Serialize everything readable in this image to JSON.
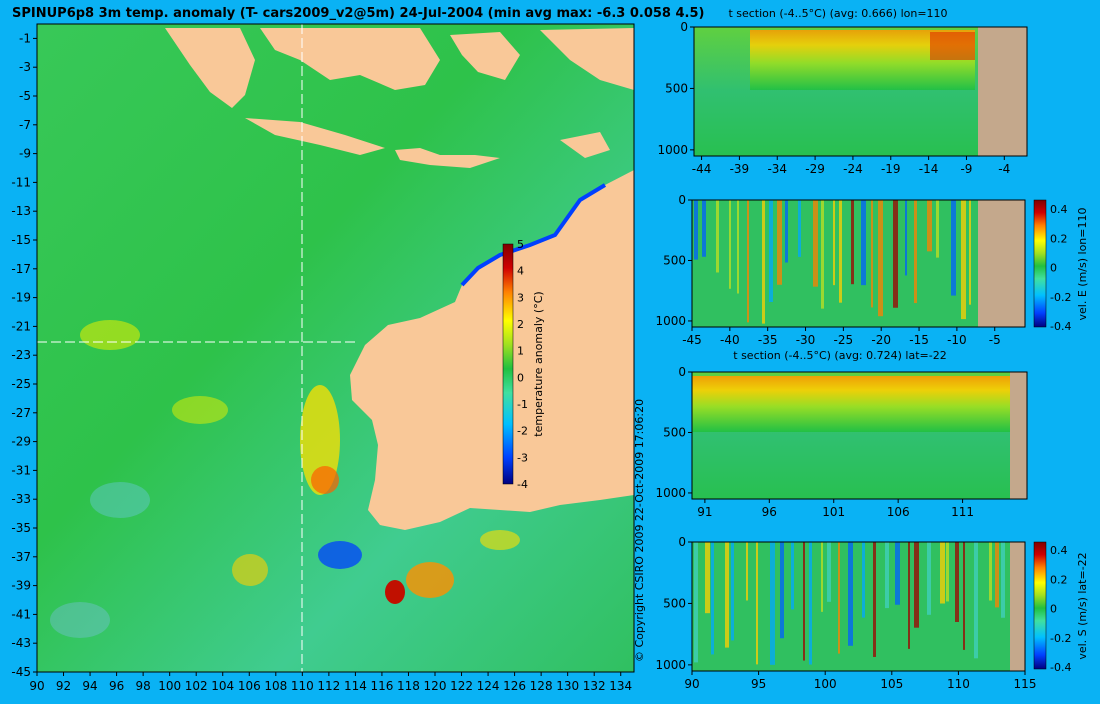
{
  "main_title": "SPINUP6p8 3m temp. anomaly (T- cars2009_v2@5m) 24-Jul-2004 (min avg max: -6.3 0.058 4.5)",
  "copyright": "© Copyright CSIRO 2009   22-Oct-2009 17:06:20",
  "colors": {
    "background": "#0ab2f4",
    "land": "#f9c898",
    "land_section": "#c4a88c",
    "colormap": [
      "#000080",
      "#0040ff",
      "#00c0ff",
      "#40e0a0",
      "#20c040",
      "#a0e020",
      "#ffff00",
      "#ff8000",
      "#d00000",
      "#800000"
    ]
  },
  "chart_data": [
    {
      "id": "map",
      "type": "heatmap",
      "title": "SPINUP6p8 3m temp. anomaly (T- cars2009_v2@5m) 24-Jul-2004 (min avg max: -6.3 0.058 4.5)",
      "x_ticks": [
        "90",
        "92",
        "94",
        "96",
        "98",
        "100",
        "102",
        "104",
        "106",
        "108",
        "110",
        "112",
        "114",
        "116",
        "118",
        "120",
        "122",
        "124",
        "126",
        "128",
        "130",
        "132",
        "134"
      ],
      "y_ticks": [
        "-1",
        "-3",
        "-5",
        "-7",
        "-9",
        "-11",
        "-13",
        "-15",
        "-17",
        "-19",
        "-21",
        "-23",
        "-25",
        "-27",
        "-29",
        "-31",
        "-33",
        "-35",
        "-37",
        "-39",
        "-41",
        "-43",
        "-45"
      ],
      "xlim": [
        90,
        135
      ],
      "ylim": [
        -45,
        0
      ],
      "crosshair": {
        "lon": 110,
        "lat": -22
      },
      "colorbar": {
        "label": "temperature anomaly (°C)",
        "ticks": [
          "5",
          "4",
          "3",
          "2",
          "1",
          "0",
          "-1",
          "-2",
          "-3",
          "-4"
        ],
        "range": [
          -4,
          5
        ]
      }
    },
    {
      "id": "tsection_lon",
      "type": "heatmap",
      "title": "t section (-4..5°C) (avg: 0.666) lon=110",
      "x_ticks": [
        "-44",
        "-39",
        "-34",
        "-29",
        "-24",
        "-19",
        "-14",
        "-9",
        "-4"
      ],
      "y_ticks": [
        "0",
        "500",
        "1000"
      ],
      "xlim": [
        -45,
        -1
      ],
      "ylim": [
        1050,
        0
      ]
    },
    {
      "id": "velE",
      "type": "heatmap",
      "title": "",
      "x_ticks": [
        "-45",
        "-40",
        "-35",
        "-30",
        "-25",
        "-20",
        "-15",
        "-10",
        "-5"
      ],
      "y_ticks": [
        "0",
        "500",
        "1000"
      ],
      "xlim": [
        -45,
        -1
      ],
      "ylim": [
        1050,
        0
      ],
      "colorbar": {
        "label": "vel. E (m/s) lon=110",
        "ticks": [
          "0.4",
          "0.2",
          "0",
          "-0.2",
          "-0.4"
        ]
      }
    },
    {
      "id": "tsection_lat",
      "type": "heatmap",
      "title": "t section (-4..5°C) (avg: 0.724) lat=-22",
      "x_ticks": [
        "91",
        "96",
        "101",
        "106",
        "111"
      ],
      "y_ticks": [
        "0",
        "500",
        "1000"
      ],
      "xlim": [
        90,
        116
      ],
      "ylim": [
        1050,
        0
      ]
    },
    {
      "id": "velS",
      "type": "heatmap",
      "title": "",
      "x_ticks": [
        "90",
        "95",
        "100",
        "105",
        "110",
        "115"
      ],
      "y_ticks": [
        "0",
        "500",
        "1000"
      ],
      "xlim": [
        90,
        115
      ],
      "ylim": [
        1050,
        0
      ],
      "colorbar": {
        "label": "vel. S (m/s) lat=-22",
        "ticks": [
          "0.4",
          "0.2",
          "0",
          "-0.2",
          "-0.4"
        ]
      }
    }
  ]
}
